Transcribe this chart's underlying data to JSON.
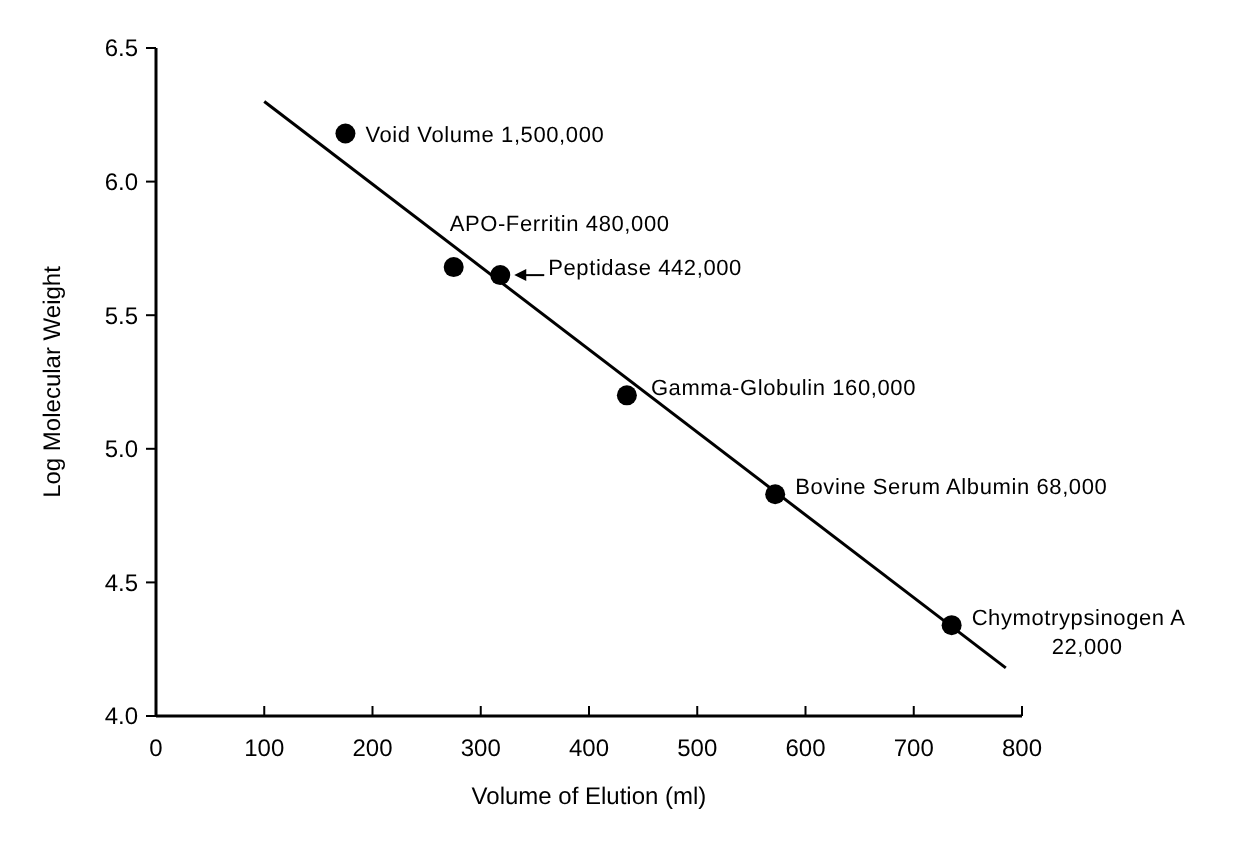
{
  "chart_data": {
    "type": "scatter",
    "xlabel": "Volume of Elution (ml)",
    "ylabel": "Log Molecular Weight",
    "xlim": [
      0,
      800
    ],
    "xticks": [
      0,
      100,
      200,
      300,
      400,
      500,
      600,
      700,
      800
    ],
    "ylim": [
      4.0,
      6.5
    ],
    "yticks": [
      {
        "value": 4.0,
        "label": "4.0"
      },
      4.5,
      {
        "value": 5.0,
        "label": "5.0"
      },
      5.5,
      {
        "value": 6.0,
        "label": "6.0"
      },
      6.5
    ],
    "grid": false,
    "marker": "circle",
    "series": [
      {
        "color": "#000000",
        "x": [
          175,
          275,
          318,
          435,
          572,
          735
        ],
        "values": [
          6.18,
          5.68,
          5.65,
          5.2,
          4.83,
          4.34
        ]
      },
      {
        "type": "line",
        "color": "#000000",
        "line_style": "solid",
        "marker": "none",
        "x": [
          100,
          785
        ],
        "values": [
          6.3,
          4.18
        ]
      }
    ],
    "annotations": [
      {
        "text": "Void Volume 1,500,000",
        "x": 175,
        "y": 6.18
      },
      {
        "text": "APO-Ferritin 480,000",
        "x": 275,
        "y": 5.68
      },
      {
        "text": "Peptidase 442,000",
        "x": 318,
        "y": 5.65
      },
      {
        "text": "Gamma-Globulin 160,000",
        "x": 435,
        "y": 5.2
      },
      {
        "text": "Bovine Serum Albumin 68,000",
        "x": 572,
        "y": 4.83
      },
      {
        "text": "Chymotrypsinogen A\n22,000",
        "x": 735,
        "y": 4.34
      }
    ]
  }
}
